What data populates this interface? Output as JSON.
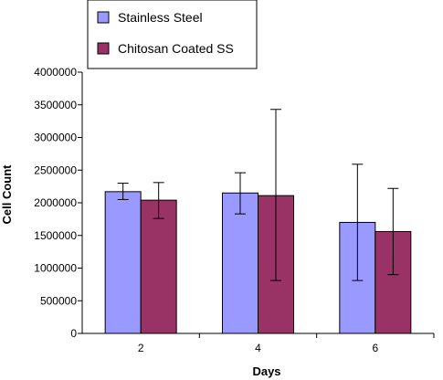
{
  "chart_data": {
    "type": "bar",
    "title": "",
    "xlabel": "Days",
    "ylabel": "Cell Count",
    "categories": [
      "2",
      "4",
      "6"
    ],
    "ylim": [
      0,
      4000000
    ],
    "yticks": [
      0,
      500000,
      1000000,
      1500000,
      2000000,
      2500000,
      3000000,
      3500000,
      4000000
    ],
    "ytick_labels": [
      "0",
      "500000",
      "1000000",
      "1500000",
      "2000000",
      "2500000",
      "3000000",
      "3500000",
      "4000000"
    ],
    "grid": "none",
    "legend_placement": "top-left",
    "series": [
      {
        "name": "Stainless Steel",
        "color": "#9999ff",
        "values": [
          2170000,
          2150000,
          1700000
        ],
        "error_low": [
          2050000,
          1830000,
          810000
        ],
        "error_high": [
          2300000,
          2460000,
          2590000
        ]
      },
      {
        "name": "Chitosan Coated SS",
        "color": "#993366",
        "values": [
          2040000,
          2110000,
          1560000
        ],
        "error_low": [
          1760000,
          810000,
          900000
        ],
        "error_high": [
          2310000,
          3430000,
          2220000
        ]
      }
    ]
  }
}
